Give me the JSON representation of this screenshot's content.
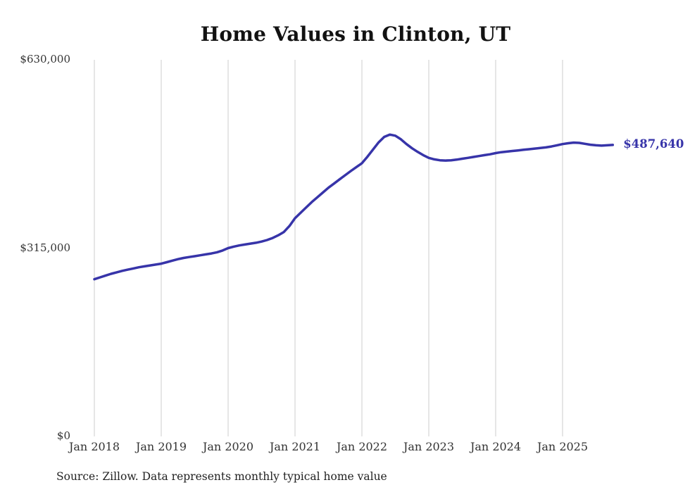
{
  "title": "Home Values in Clinton, UT",
  "source_note": "Source: Zillow. Data represents monthly typical home value",
  "end_label": "$487,640",
  "colors": {
    "line": "#3734a9",
    "grid": "#cccccc",
    "title": "#121212",
    "axis_text": "#333333"
  },
  "chart_data": {
    "type": "line",
    "title": "Home Values in Clinton, UT",
    "xlabel": "",
    "ylabel": "",
    "ylim": [
      0,
      630000
    ],
    "grid": "vertical-only",
    "legend": "none",
    "annotation": {
      "text": "$487,640",
      "position": "line-end"
    },
    "y_ticks": [
      {
        "value": 0,
        "label": "$0"
      },
      {
        "value": 315000,
        "label": "$315,000"
      },
      {
        "value": 630000,
        "label": "$630,000"
      }
    ],
    "x_ticks": [
      "Jan 2018",
      "Jan 2019",
      "Jan 2020",
      "Jan 2021",
      "Jan 2022",
      "Jan 2023",
      "Jan 2024",
      "Jan 2025"
    ],
    "x": [
      "2018-01",
      "2018-02",
      "2018-03",
      "2018-04",
      "2018-05",
      "2018-06",
      "2018-07",
      "2018-08",
      "2018-09",
      "2018-10",
      "2018-11",
      "2018-12",
      "2019-01",
      "2019-02",
      "2019-03",
      "2019-04",
      "2019-05",
      "2019-06",
      "2019-07",
      "2019-08",
      "2019-09",
      "2019-10",
      "2019-11",
      "2019-12",
      "2020-01",
      "2020-02",
      "2020-03",
      "2020-04",
      "2020-05",
      "2020-06",
      "2020-07",
      "2020-08",
      "2020-09",
      "2020-10",
      "2020-11",
      "2020-12",
      "2021-01",
      "2021-02",
      "2021-03",
      "2021-04",
      "2021-05",
      "2021-06",
      "2021-07",
      "2021-08",
      "2021-09",
      "2021-10",
      "2021-11",
      "2021-12",
      "2022-01",
      "2022-02",
      "2022-03",
      "2022-04",
      "2022-05",
      "2022-06",
      "2022-07",
      "2022-08",
      "2022-09",
      "2022-10",
      "2022-11",
      "2022-12",
      "2023-01",
      "2023-02",
      "2023-03",
      "2023-04",
      "2023-05",
      "2023-06",
      "2023-07",
      "2023-08",
      "2023-09",
      "2023-10",
      "2023-11",
      "2023-12",
      "2024-01",
      "2024-02",
      "2024-03",
      "2024-04",
      "2024-05",
      "2024-06",
      "2024-07",
      "2024-08",
      "2024-09",
      "2024-10",
      "2024-11",
      "2024-12",
      "2025-01",
      "2025-02",
      "2025-03",
      "2025-04",
      "2025-05",
      "2025-06",
      "2025-07",
      "2025-08",
      "2025-09",
      "2025-10"
    ],
    "values": [
      263000,
      266000,
      269000,
      272000,
      274500,
      277000,
      279000,
      281000,
      283000,
      284500,
      286000,
      287500,
      289000,
      291500,
      294000,
      296500,
      298500,
      300000,
      301500,
      303000,
      304500,
      306000,
      308000,
      311000,
      315000,
      317500,
      319500,
      321000,
      322500,
      324000,
      326000,
      328500,
      332000,
      336500,
      342000,
      352000,
      365000,
      374000,
      383000,
      392000,
      400000,
      408000,
      416000,
      423000,
      430000,
      437000,
      444000,
      450500,
      457000,
      468000,
      480000,
      492000,
      501000,
      505000,
      503000,
      497000,
      489000,
      482000,
      476000,
      470500,
      466000,
      463500,
      462000,
      461500,
      462000,
      463000,
      464500,
      466000,
      467500,
      469000,
      470500,
      472000,
      474000,
      475500,
      476500,
      477500,
      478500,
      479500,
      480500,
      481500,
      482500,
      483500,
      485000,
      487000,
      489000,
      490500,
      491500,
      491000,
      489500,
      488000,
      487000,
      486500,
      487000,
      487640
    ]
  }
}
